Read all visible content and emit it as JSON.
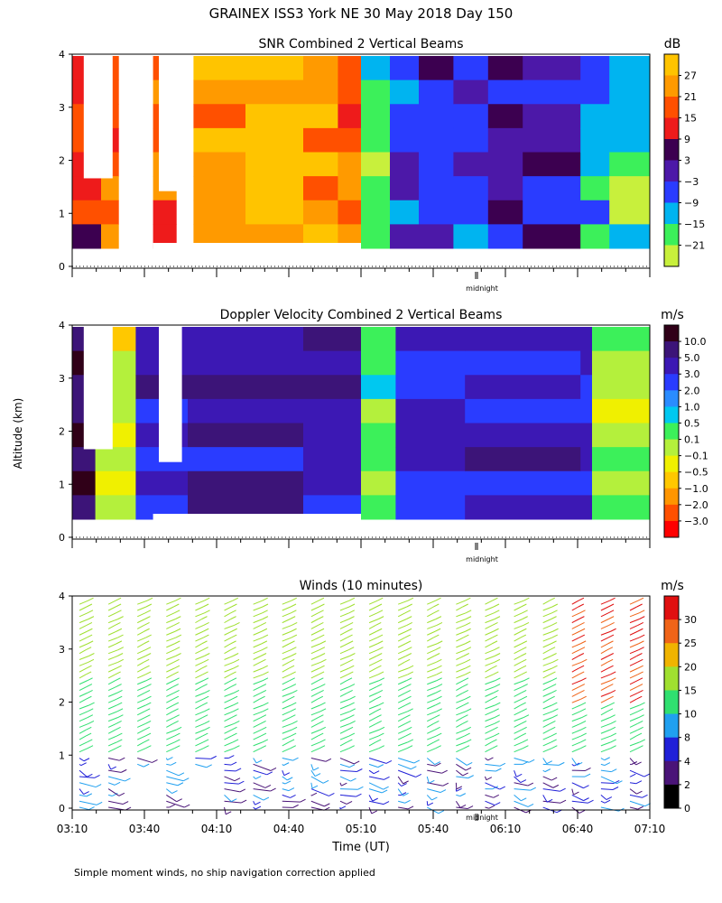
{
  "figure": {
    "title": "GRAINEX ISS3 York NE  30 May 2018 Day 150",
    "ylabel": "Altitude (km)",
    "xlabel": "Time (UT)",
    "footnote": "Simple moment winds, no ship navigation correction applied",
    "midnight_label": "midnight"
  },
  "chart_data": [
    {
      "type": "heatmap",
      "title": "SNR Combined 2 Vertical Beams",
      "ylim": [
        0,
        4
      ],
      "yticks": [
        "0",
        "1",
        "2",
        "3",
        "4"
      ],
      "colorbar": {
        "unit": "dB",
        "labels": [
          "27",
          "21",
          "15",
          "9",
          "3",
          "−3",
          "−9",
          "−15",
          "−21"
        ],
        "colors": [
          "#ffc400",
          "#ff9a00",
          "#ff5000",
          "#ee1b1b",
          "#3c0050",
          "#4c18a8",
          "#2a3cff",
          "#00b4f0",
          "#3cf05a",
          "#c8f03c"
        ]
      },
      "columns": [
        {
          "t": 0.0,
          "level": 3
        },
        {
          "t": 0.05,
          "level": 2
        },
        {
          "t": 0.08,
          "level": null
        },
        {
          "t": 0.14,
          "level": 2
        },
        {
          "t": 0.18,
          "level": null
        },
        {
          "t": 0.21,
          "level": 1
        },
        {
          "t": 0.3,
          "level": 0
        },
        {
          "t": 0.4,
          "level": 1
        },
        {
          "t": 0.46,
          "level": 2
        },
        {
          "t": 0.5,
          "level": 8
        },
        {
          "t": 0.55,
          "level": 6
        },
        {
          "t": 0.6,
          "level": 5
        },
        {
          "t": 0.66,
          "level": 6
        },
        {
          "t": 0.72,
          "level": 5
        },
        {
          "t": 0.78,
          "level": 5
        },
        {
          "t": 0.88,
          "level": 7
        },
        {
          "t": 0.93,
          "level": 8
        },
        {
          "t": 1.0,
          "level": 8
        }
      ]
    },
    {
      "type": "heatmap",
      "title": "Doppler Velocity Combined 2 Vertical Beams",
      "ylim": [
        0,
        4
      ],
      "yticks": [
        "0",
        "1",
        "2",
        "3",
        "4"
      ],
      "colorbar": {
        "unit": "m/s",
        "labels": [
          "10.0",
          "5.0",
          "3.0",
          "2.0",
          "1.0",
          "0.5",
          "0.1",
          "−0.1",
          "−0.5",
          "−1.0",
          "−2.0",
          "−3.0"
        ],
        "colors": [
          "#300018",
          "#3c1478",
          "#3c18b4",
          "#2a3cff",
          "#2a8cff",
          "#00c8f0",
          "#3cf05a",
          "#b4f03c",
          "#f0f000",
          "#ffc800",
          "#ff9600",
          "#ff5000",
          "#ff0000"
        ]
      },
      "columns": [
        {
          "t": 0.0,
          "level": 1
        },
        {
          "t": 0.04,
          "level": 8
        },
        {
          "t": 0.11,
          "level": 2
        },
        {
          "t": 0.2,
          "level": 2
        },
        {
          "t": 0.4,
          "level": 2
        },
        {
          "t": 0.5,
          "level": 6
        },
        {
          "t": 0.56,
          "level": 2
        },
        {
          "t": 0.68,
          "level": 2
        },
        {
          "t": 0.88,
          "level": 2
        },
        {
          "t": 0.9,
          "level": 7
        },
        {
          "t": 1.0,
          "level": 9
        }
      ]
    },
    {
      "type": "scatter",
      "title": "Winds (10 minutes)",
      "ylim": [
        0,
        4
      ],
      "yticks": [
        "0",
        "1",
        "2",
        "3",
        "4"
      ],
      "colorbar": {
        "unit": "m/s",
        "labels": [
          "30",
          "25",
          "20",
          "15",
          "10",
          "8",
          "4",
          "2",
          "0"
        ],
        "colors": [
          "#e01010",
          "#f06418",
          "#f0b400",
          "#a0e030",
          "#30e070",
          "#20a0f0",
          "#2020d8",
          "#4a1478",
          "#000000"
        ]
      },
      "profile_times": [
        "03:10",
        "03:40",
        "03:50",
        "04:10",
        "04:20",
        "04:30",
        "04:40",
        "04:50",
        "05:00",
        "05:10",
        "05:30",
        "05:40",
        "05:50",
        "06:00",
        "06:10",
        "06:20",
        "06:30",
        "06:40",
        "06:50",
        "07:00"
      ]
    }
  ],
  "time_axis": {
    "ticks": [
      "03:10",
      "03:40",
      "04:10",
      "04:40",
      "05:10",
      "05:40",
      "06:10",
      "06:40",
      "07:10"
    ],
    "midnight_fraction": 0.7
  }
}
